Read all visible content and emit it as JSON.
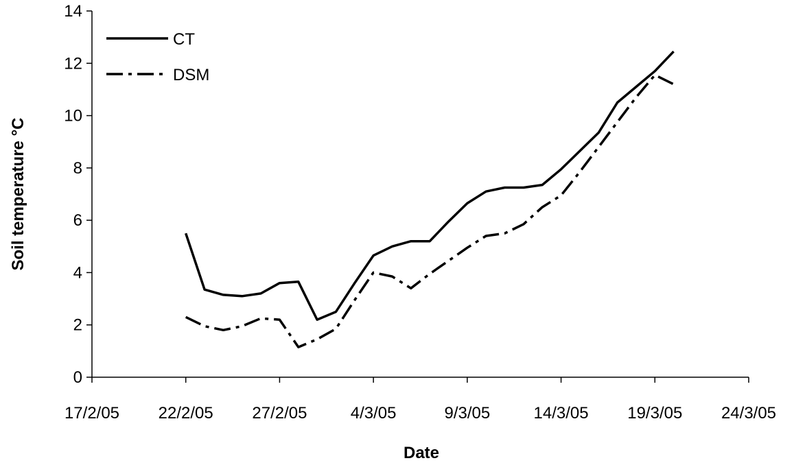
{
  "chart_data": {
    "type": "line",
    "xlabel": "Date",
    "ylabel": "Soil temperature °C",
    "x_ticks": [
      "17/2/05",
      "22/2/05",
      "27/2/05",
      "4/3/05",
      "9/3/05",
      "14/3/05",
      "19/3/05",
      "24/3/05"
    ],
    "y_ticks": [
      "0",
      "2",
      "4",
      "6",
      "8",
      "10",
      "12",
      "14"
    ],
    "xlim": [
      "2005-02-17",
      "2005-03-24"
    ],
    "ylim": [
      0,
      14
    ],
    "grid": false,
    "legend_position": "top-left",
    "series": [
      {
        "name": "CT",
        "style": "solid",
        "color": "#000000",
        "x": [
          "2005-02-22",
          "2005-02-23",
          "2005-02-24",
          "2005-02-25",
          "2005-02-26",
          "2005-02-27",
          "2005-02-28",
          "2005-03-01",
          "2005-03-02",
          "2005-03-03",
          "2005-03-04",
          "2005-03-05",
          "2005-03-06",
          "2005-03-07",
          "2005-03-08",
          "2005-03-09",
          "2005-03-10",
          "2005-03-11",
          "2005-03-12",
          "2005-03-13",
          "2005-03-14",
          "2005-03-15",
          "2005-03-16",
          "2005-03-17",
          "2005-03-18",
          "2005-03-19",
          "2005-03-20"
        ],
        "values": [
          5.5,
          3.35,
          3.15,
          3.1,
          3.2,
          3.6,
          3.65,
          2.2,
          2.5,
          3.6,
          4.65,
          5.0,
          5.2,
          5.2,
          5.95,
          6.65,
          7.1,
          7.25,
          7.25,
          7.35,
          7.95,
          8.65,
          9.35,
          10.5,
          11.1,
          11.7,
          12.45
        ]
      },
      {
        "name": "DSM",
        "style": "dash-dot",
        "color": "#000000",
        "x": [
          "2005-02-22",
          "2005-02-23",
          "2005-02-24",
          "2005-02-25",
          "2005-02-26",
          "2005-02-27",
          "2005-02-28",
          "2005-03-01",
          "2005-03-02",
          "2005-03-03",
          "2005-03-04",
          "2005-03-05",
          "2005-03-06",
          "2005-03-07",
          "2005-03-08",
          "2005-03-09",
          "2005-03-10",
          "2005-03-11",
          "2005-03-12",
          "2005-03-13",
          "2005-03-14",
          "2005-03-15",
          "2005-03-16",
          "2005-03-17",
          "2005-03-18",
          "2005-03-19",
          "2005-03-20"
        ],
        "values": [
          2.3,
          1.95,
          1.8,
          1.95,
          2.25,
          2.2,
          1.15,
          1.45,
          1.85,
          2.95,
          4.0,
          3.85,
          3.4,
          3.95,
          4.45,
          4.95,
          5.4,
          5.5,
          5.85,
          6.5,
          6.95,
          7.85,
          8.8,
          9.75,
          10.7,
          11.55,
          11.2
        ]
      }
    ]
  }
}
